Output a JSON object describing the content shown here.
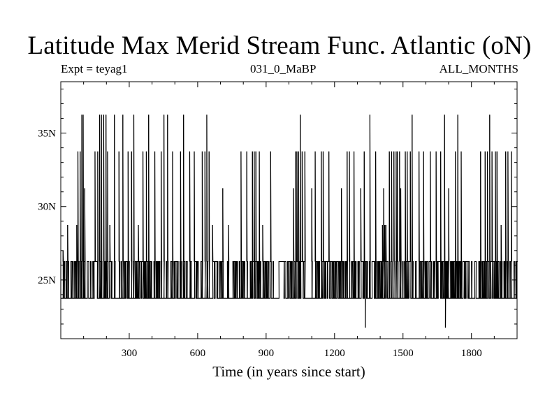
{
  "chart_data": {
    "type": "line",
    "title": "Latitude Max Merid Stream Func. Atlantic (oN)",
    "subtitle_left": "Expt = teyag1",
    "subtitle_center": "031_0_MaBP",
    "subtitle_right": "ALL_MONTHS",
    "xlabel": "Time (in years since start)",
    "ylabel": "",
    "xlim": [
      0,
      2000
    ],
    "ylim": [
      21,
      38.5
    ],
    "x_ticks": [
      300,
      600,
      900,
      1200,
      1500,
      1800
    ],
    "x_tick_labels": [
      "300",
      "600",
      "900",
      "1200",
      "1500",
      "1800"
    ],
    "y_ticks": [
      25,
      30,
      35
    ],
    "y_tick_labels": [
      "25N",
      "30N",
      "35N"
    ],
    "series": [
      {
        "color": "#000000",
        "levels": [
          23.75,
          26.25,
          27,
          28.75,
          31.25,
          33.75,
          36.25,
          21.75
        ],
        "base_level": 26.25,
        "low_level": 23.75,
        "dense_gap_years": [
          [
            960,
            975
          ]
        ],
        "excursions": [
          {
            "x": 10,
            "y": 27.0
          },
          {
            "x": 30,
            "y": 28.75
          },
          {
            "x": 70,
            "y": 28.75
          },
          {
            "x": 75,
            "y": 33.75
          },
          {
            "x": 85,
            "y": 33.75
          },
          {
            "x": 92,
            "y": 36.25
          },
          {
            "x": 98,
            "y": 36.25
          },
          {
            "x": 105,
            "y": 31.25
          },
          {
            "x": 150,
            "y": 33.75
          },
          {
            "x": 162,
            "y": 33.75
          },
          {
            "x": 170,
            "y": 36.25
          },
          {
            "x": 178,
            "y": 36.25
          },
          {
            "x": 188,
            "y": 36.25
          },
          {
            "x": 198,
            "y": 36.25
          },
          {
            "x": 205,
            "y": 33.75
          },
          {
            "x": 215,
            "y": 28.75
          },
          {
            "x": 235,
            "y": 36.25
          },
          {
            "x": 255,
            "y": 33.75
          },
          {
            "x": 272,
            "y": 36.25
          },
          {
            "x": 295,
            "y": 33.75
          },
          {
            "x": 310,
            "y": 33.75
          },
          {
            "x": 320,
            "y": 36.25
          },
          {
            "x": 340,
            "y": 28.75
          },
          {
            "x": 360,
            "y": 33.75
          },
          {
            "x": 375,
            "y": 33.75
          },
          {
            "x": 385,
            "y": 36.25
          },
          {
            "x": 412,
            "y": 33.75
          },
          {
            "x": 440,
            "y": 33.75
          },
          {
            "x": 452,
            "y": 36.25
          },
          {
            "x": 468,
            "y": 36.25
          },
          {
            "x": 490,
            "y": 33.75
          },
          {
            "x": 525,
            "y": 33.75
          },
          {
            "x": 538,
            "y": 36.25
          },
          {
            "x": 565,
            "y": 33.75
          },
          {
            "x": 585,
            "y": 33.75
          },
          {
            "x": 620,
            "y": 33.75
          },
          {
            "x": 632,
            "y": 33.75
          },
          {
            "x": 640,
            "y": 36.25
          },
          {
            "x": 650,
            "y": 33.75
          },
          {
            "x": 665,
            "y": 28.75
          },
          {
            "x": 710,
            "y": 31.25
          },
          {
            "x": 735,
            "y": 28.75
          },
          {
            "x": 790,
            "y": 33.75
          },
          {
            "x": 815,
            "y": 33.75
          },
          {
            "x": 840,
            "y": 33.75
          },
          {
            "x": 848,
            "y": 33.75
          },
          {
            "x": 855,
            "y": 33.75
          },
          {
            "x": 870,
            "y": 33.75
          },
          {
            "x": 885,
            "y": 28.75
          },
          {
            "x": 920,
            "y": 33.75
          },
          {
            "x": 1020,
            "y": 31.25
          },
          {
            "x": 1030,
            "y": 33.75
          },
          {
            "x": 1035,
            "y": 33.75
          },
          {
            "x": 1042,
            "y": 33.75
          },
          {
            "x": 1050,
            "y": 36.25
          },
          {
            "x": 1058,
            "y": 33.75
          },
          {
            "x": 1070,
            "y": 33.75
          },
          {
            "x": 1100,
            "y": 31.25
          },
          {
            "x": 1115,
            "y": 33.75
          },
          {
            "x": 1142,
            "y": 33.75
          },
          {
            "x": 1150,
            "y": 33.75
          },
          {
            "x": 1175,
            "y": 33.75
          },
          {
            "x": 1230,
            "y": 31.25
          },
          {
            "x": 1255,
            "y": 33.75
          },
          {
            "x": 1265,
            "y": 33.75
          },
          {
            "x": 1285,
            "y": 33.75
          },
          {
            "x": 1315,
            "y": 31.25
          },
          {
            "x": 1330,
            "y": 33.75
          },
          {
            "x": 1335,
            "y": 21.75
          },
          {
            "x": 1355,
            "y": 36.25
          },
          {
            "x": 1380,
            "y": 33.75
          },
          {
            "x": 1410,
            "y": 28.75
          },
          {
            "x": 1415,
            "y": 31.25
          },
          {
            "x": 1420,
            "y": 28.75
          },
          {
            "x": 1425,
            "y": 28.75
          },
          {
            "x": 1440,
            "y": 33.75
          },
          {
            "x": 1450,
            "y": 33.75
          },
          {
            "x": 1460,
            "y": 33.75
          },
          {
            "x": 1470,
            "y": 33.75
          },
          {
            "x": 1475,
            "y": 33.75
          },
          {
            "x": 1485,
            "y": 33.75
          },
          {
            "x": 1490,
            "y": 31.25
          },
          {
            "x": 1510,
            "y": 33.75
          },
          {
            "x": 1518,
            "y": 33.75
          },
          {
            "x": 1532,
            "y": 33.75
          },
          {
            "x": 1540,
            "y": 36.25
          },
          {
            "x": 1570,
            "y": 33.75
          },
          {
            "x": 1590,
            "y": 33.75
          },
          {
            "x": 1620,
            "y": 33.75
          },
          {
            "x": 1645,
            "y": 33.75
          },
          {
            "x": 1665,
            "y": 33.75
          },
          {
            "x": 1682,
            "y": 36.25
          },
          {
            "x": 1686,
            "y": 21.75
          },
          {
            "x": 1700,
            "y": 31.25
          },
          {
            "x": 1730,
            "y": 33.75
          },
          {
            "x": 1740,
            "y": 36.25
          },
          {
            "x": 1755,
            "y": 33.75
          },
          {
            "x": 1840,
            "y": 33.75
          },
          {
            "x": 1860,
            "y": 33.75
          },
          {
            "x": 1870,
            "y": 33.75
          },
          {
            "x": 1880,
            "y": 36.25
          },
          {
            "x": 1890,
            "y": 33.75
          },
          {
            "x": 1905,
            "y": 33.75
          },
          {
            "x": 1912,
            "y": 33.75
          },
          {
            "x": 1930,
            "y": 28.75
          },
          {
            "x": 1950,
            "y": 33.75
          },
          {
            "x": 1960,
            "y": 33.75
          },
          {
            "x": 1975,
            "y": 33.75
          }
        ]
      }
    ],
    "grid": false,
    "legend": "none"
  }
}
